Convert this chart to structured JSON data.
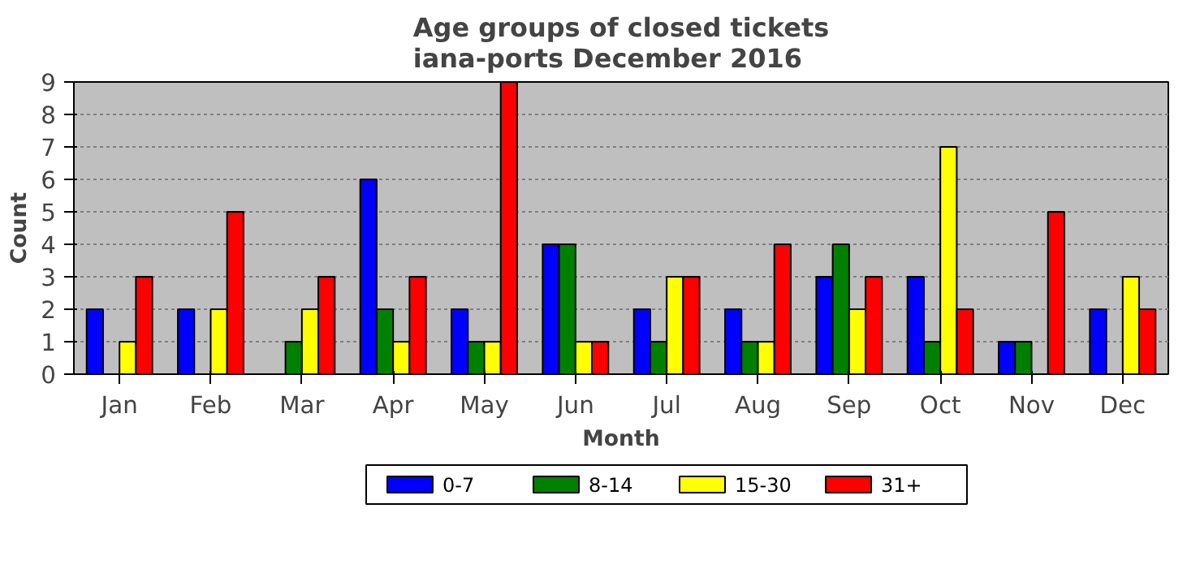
{
  "chart_data": {
    "type": "bar",
    "title": "Age groups of closed tickets\niana-ports December 2016",
    "xlabel": "Month",
    "ylabel": "Count",
    "categories": [
      "Jan",
      "Feb",
      "Mar",
      "Apr",
      "May",
      "Jun",
      "Jul",
      "Aug",
      "Sep",
      "Oct",
      "Nov",
      "Dec"
    ],
    "series": [
      {
        "name": "0-7",
        "color": "#0000ff",
        "values": [
          2,
          2,
          0,
          6,
          2,
          4,
          2,
          2,
          3,
          3,
          1,
          2
        ]
      },
      {
        "name": "8-14",
        "color": "#008000",
        "values": [
          0,
          0,
          1,
          2,
          1,
          4,
          1,
          1,
          4,
          1,
          1,
          0
        ]
      },
      {
        "name": "15-30",
        "color": "#ffff00",
        "values": [
          1,
          2,
          2,
          1,
          1,
          1,
          3,
          1,
          2,
          7,
          0,
          3
        ]
      },
      {
        "name": "31+",
        "color": "#ff0000",
        "values": [
          3,
          5,
          3,
          3,
          9,
          1,
          3,
          4,
          3,
          2,
          5,
          2
        ]
      }
    ],
    "ylim": [
      0,
      9
    ],
    "yticks": [
      0,
      1,
      2,
      3,
      4,
      5,
      6,
      7,
      8,
      9
    ],
    "grid": "y",
    "legend": "bottom"
  }
}
